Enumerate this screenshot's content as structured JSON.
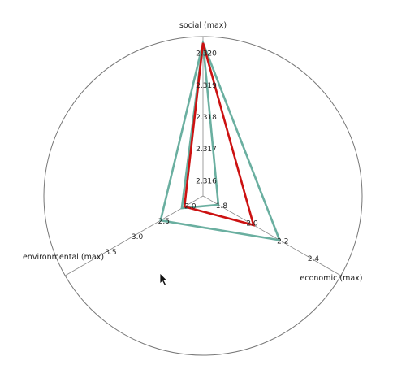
{
  "chart_data": {
    "type": "radar",
    "axes": [
      {
        "label": "social (max)",
        "ticks": [
          "2.316",
          "2.317",
          "2.318",
          "2.319",
          "2.320"
        ],
        "range": [
          2.3155,
          2.3205
        ]
      },
      {
        "label": "economic (max)",
        "ticks": [
          "1.8",
          "2.0",
          "2.2",
          "2.4"
        ],
        "range": [
          1.7,
          2.6
        ]
      },
      {
        "label": "environmental (max)",
        "ticks": [
          "2.0",
          "2.5",
          "3.0",
          "3.5"
        ],
        "range": [
          1.7,
          4.3
        ]
      }
    ],
    "series": [
      {
        "values": [
          2.3203,
          2.2,
          2.5
        ],
        "color": "#6aafa0"
      },
      {
        "values": [
          2.3203,
          1.8,
          2.1
        ],
        "color": "#6aafa0"
      },
      {
        "values": [
          2.3203,
          2.03,
          2.05
        ],
        "color": "#cc1111"
      }
    ],
    "legend": "none",
    "grid": "radial axes with outer circle"
  },
  "cursor": {
    "icon": "mouse-pointer-icon"
  }
}
